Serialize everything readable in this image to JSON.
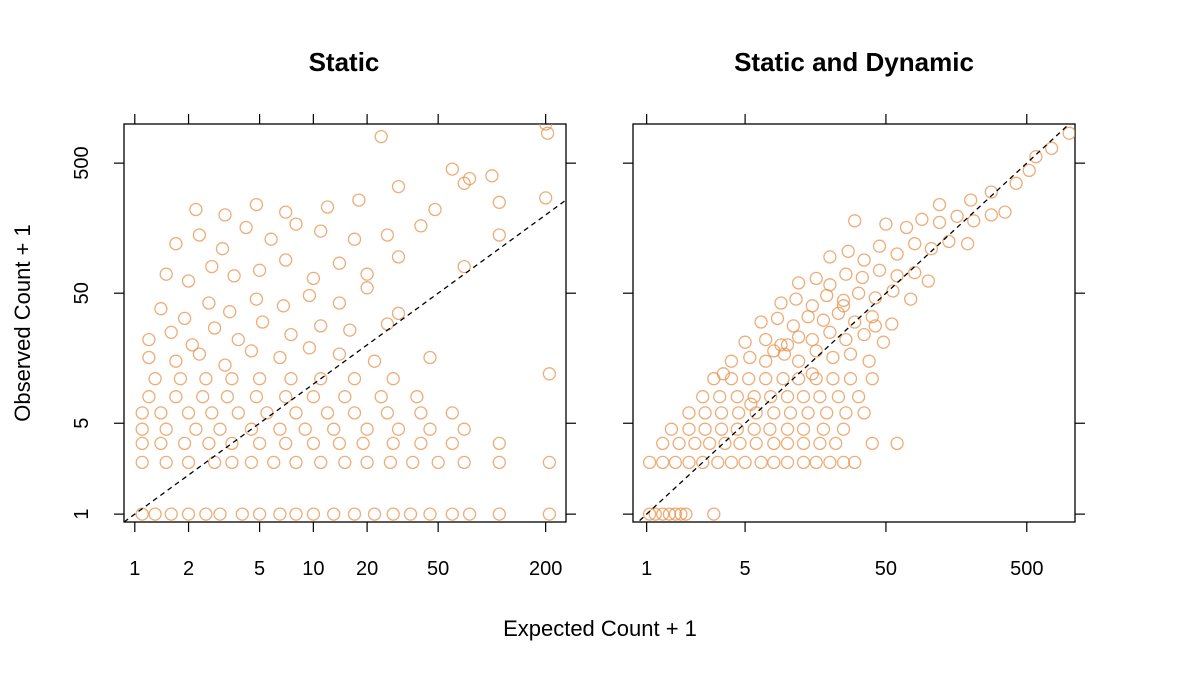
{
  "chart_data": {
    "type": "scatter",
    "xlabel": "Expected Count + 1",
    "ylabel": "Observed Count + 1",
    "x_scale": "log",
    "y_scale": "log",
    "point_color": "#E8904A",
    "reference_line": "y = x (dashed)",
    "grid": false,
    "panels": [
      {
        "title": "Static",
        "xlim": [
          0.87,
          260
        ],
        "ylim": [
          0.87,
          1000
        ],
        "x_ticks": [
          1,
          2,
          5,
          10,
          20,
          50,
          200
        ],
        "x_tick_labels": [
          "1",
          "2",
          "5",
          "10",
          "20",
          "50",
          "200"
        ],
        "y_ticks": [
          1,
          5,
          50,
          500
        ],
        "y_tick_labels": [
          "1",
          "5",
          "50",
          "500"
        ],
        "points": [
          [
            1.1,
            1
          ],
          [
            1.3,
            1
          ],
          [
            1.6,
            1
          ],
          [
            2,
            1
          ],
          [
            2.5,
            1
          ],
          [
            3,
            1
          ],
          [
            4,
            1
          ],
          [
            5,
            1
          ],
          [
            6.5,
            1
          ],
          [
            8,
            1
          ],
          [
            10,
            1
          ],
          [
            13,
            1
          ],
          [
            17,
            1
          ],
          [
            22,
            1
          ],
          [
            28,
            1
          ],
          [
            35,
            1
          ],
          [
            45,
            1
          ],
          [
            60,
            1
          ],
          [
            75,
            1
          ],
          [
            110,
            1
          ],
          [
            210,
            1
          ],
          [
            1.1,
            2.5
          ],
          [
            1.5,
            2.5
          ],
          [
            2,
            2.5
          ],
          [
            2.8,
            2.5
          ],
          [
            3.5,
            2.5
          ],
          [
            4.5,
            2.5
          ],
          [
            6,
            2.5
          ],
          [
            8,
            2.5
          ],
          [
            11,
            2.5
          ],
          [
            15,
            2.5
          ],
          [
            20,
            2.5
          ],
          [
            27,
            2.5
          ],
          [
            36,
            2.5
          ],
          [
            50,
            2.5
          ],
          [
            70,
            2.5
          ],
          [
            110,
            2.5
          ],
          [
            210,
            2.5
          ],
          [
            1.1,
            3.5
          ],
          [
            1.4,
            3.5
          ],
          [
            1.9,
            3.5
          ],
          [
            2.6,
            3.5
          ],
          [
            3.5,
            3.5
          ],
          [
            5,
            3.5
          ],
          [
            7,
            3.5
          ],
          [
            10,
            3.5
          ],
          [
            14,
            3.5
          ],
          [
            19,
            3.5
          ],
          [
            28,
            3.5
          ],
          [
            40,
            3.5
          ],
          [
            60,
            3.5
          ],
          [
            110,
            3.5
          ],
          [
            1.1,
            4.5
          ],
          [
            1.5,
            4.5
          ],
          [
            2.2,
            4.5
          ],
          [
            3,
            4.5
          ],
          [
            4.5,
            4.5
          ],
          [
            6.5,
            4.5
          ],
          [
            9,
            4.5
          ],
          [
            13,
            4.5
          ],
          [
            20,
            4.5
          ],
          [
            30,
            4.5
          ],
          [
            45,
            4.5
          ],
          [
            70,
            4.5
          ],
          [
            1.1,
            6
          ],
          [
            1.4,
            6
          ],
          [
            2,
            6
          ],
          [
            2.7,
            6
          ],
          [
            3.8,
            6
          ],
          [
            5.5,
            6
          ],
          [
            8,
            6
          ],
          [
            12,
            6
          ],
          [
            17,
            6
          ],
          [
            26,
            6
          ],
          [
            40,
            6
          ],
          [
            60,
            6
          ],
          [
            1.2,
            8
          ],
          [
            1.7,
            8
          ],
          [
            2.4,
            8
          ],
          [
            3.3,
            8
          ],
          [
            4.8,
            8
          ],
          [
            7,
            8
          ],
          [
            10,
            8
          ],
          [
            15,
            8
          ],
          [
            24,
            8
          ],
          [
            38,
            8
          ],
          [
            1.3,
            11
          ],
          [
            1.8,
            11
          ],
          [
            2.5,
            11
          ],
          [
            3.5,
            11
          ],
          [
            5,
            11
          ],
          [
            7.5,
            11
          ],
          [
            11,
            11
          ],
          [
            17,
            11
          ],
          [
            28,
            11
          ],
          [
            1.2,
            16
          ],
          [
            1.7,
            15
          ],
          [
            2.3,
            17
          ],
          [
            3.2,
            14
          ],
          [
            4.5,
            18
          ],
          [
            6.5,
            16
          ],
          [
            9.5,
            19
          ],
          [
            14,
            17
          ],
          [
            22,
            15
          ],
          [
            45,
            16
          ],
          [
            210,
            12
          ],
          [
            1.2,
            22
          ],
          [
            1.6,
            25
          ],
          [
            2.1,
            20
          ],
          [
            2.8,
            27
          ],
          [
            3.8,
            22
          ],
          [
            5.2,
            30
          ],
          [
            7.5,
            24
          ],
          [
            11,
            28
          ],
          [
            16,
            26
          ],
          [
            26,
            29
          ],
          [
            1.4,
            38
          ],
          [
            1.9,
            32
          ],
          [
            2.6,
            42
          ],
          [
            3.4,
            36
          ],
          [
            4.8,
            45
          ],
          [
            6.8,
            40
          ],
          [
            9.5,
            48
          ],
          [
            14,
            42
          ],
          [
            20,
            55
          ],
          [
            30,
            35
          ],
          [
            1.5,
            70
          ],
          [
            2,
            62
          ],
          [
            2.7,
            80
          ],
          [
            3.6,
            68
          ],
          [
            5,
            75
          ],
          [
            7,
            90
          ],
          [
            10,
            65
          ],
          [
            14,
            85
          ],
          [
            20,
            70
          ],
          [
            30,
            95
          ],
          [
            70,
            80
          ],
          [
            1.7,
            120
          ],
          [
            2.3,
            140
          ],
          [
            3.1,
            110
          ],
          [
            4.2,
            160
          ],
          [
            5.8,
            130
          ],
          [
            8,
            170
          ],
          [
            11,
            150
          ],
          [
            17,
            130
          ],
          [
            26,
            140
          ],
          [
            40,
            165
          ],
          [
            110,
            140
          ],
          [
            2.2,
            220
          ],
          [
            3.2,
            200
          ],
          [
            4.8,
            240
          ],
          [
            7,
            210
          ],
          [
            12,
            230
          ],
          [
            18,
            260
          ],
          [
            30,
            330
          ],
          [
            48,
            220
          ],
          [
            70,
            350
          ],
          [
            100,
            400
          ],
          [
            60,
            450
          ],
          [
            75,
            380
          ],
          [
            110,
            250
          ],
          [
            200,
            270
          ],
          [
            24,
            800
          ],
          [
            200,
            1000
          ],
          [
            205,
            850
          ]
        ]
      },
      {
        "title": "Static and Dynamic",
        "xlim": [
          0.8,
          1100
        ],
        "ylim": [
          0.87,
          1000
        ],
        "x_ticks": [
          1,
          5,
          50,
          500
        ],
        "x_tick_labels": [
          "1",
          "5",
          "50",
          "500"
        ],
        "y_ticks": [
          1,
          5,
          50,
          500
        ],
        "y_tick_labels": [
          "1",
          "5",
          "50",
          "500"
        ],
        "points": [
          [
            1.05,
            1
          ],
          [
            1.15,
            1
          ],
          [
            1.3,
            1
          ],
          [
            1.45,
            1
          ],
          [
            1.6,
            1
          ],
          [
            1.75,
            1
          ],
          [
            1.9,
            1
          ],
          [
            3,
            1
          ],
          [
            1.05,
            2.5
          ],
          [
            1.3,
            2.5
          ],
          [
            1.6,
            2.5
          ],
          [
            2,
            2.5
          ],
          [
            2.5,
            2.5
          ],
          [
            3.2,
            2.5
          ],
          [
            4,
            2.5
          ],
          [
            5,
            2.5
          ],
          [
            6.5,
            2.5
          ],
          [
            8,
            2.5
          ],
          [
            10,
            2.5
          ],
          [
            13,
            2.5
          ],
          [
            16,
            2.5
          ],
          [
            20,
            2.5
          ],
          [
            25,
            2.5
          ],
          [
            30,
            2.5
          ],
          [
            1.3,
            3.5
          ],
          [
            1.7,
            3.5
          ],
          [
            2.2,
            3.5
          ],
          [
            2.8,
            3.5
          ],
          [
            3.6,
            3.5
          ],
          [
            4.6,
            3.5
          ],
          [
            6,
            3.5
          ],
          [
            8,
            3.5
          ],
          [
            10,
            3.5
          ],
          [
            13,
            3.5
          ],
          [
            17,
            3.5
          ],
          [
            22,
            3.5
          ],
          [
            40,
            3.5
          ],
          [
            1.5,
            4.5
          ],
          [
            2,
            4.5
          ],
          [
            2.6,
            4.5
          ],
          [
            3.4,
            4.5
          ],
          [
            4.4,
            4.5
          ],
          [
            5.8,
            4.5
          ],
          [
            7.5,
            4.5
          ],
          [
            10,
            4.5
          ],
          [
            13,
            4.5
          ],
          [
            18,
            4.5
          ],
          [
            25,
            4.5
          ],
          [
            2,
            6
          ],
          [
            2.6,
            6
          ],
          [
            3.4,
            6
          ],
          [
            4.5,
            6
          ],
          [
            6,
            6
          ],
          [
            8,
            6
          ],
          [
            10.5,
            6
          ],
          [
            14,
            6
          ],
          [
            19,
            6
          ],
          [
            26,
            6
          ],
          [
            35,
            6
          ],
          [
            2.5,
            8
          ],
          [
            3.3,
            8
          ],
          [
            4.4,
            8
          ],
          [
            5.8,
            8
          ],
          [
            7.6,
            8
          ],
          [
            10,
            8
          ],
          [
            13,
            8
          ],
          [
            17,
            8
          ],
          [
            23,
            8
          ],
          [
            32,
            8
          ],
          [
            3,
            11
          ],
          [
            4,
            11
          ],
          [
            5.3,
            11
          ],
          [
            7,
            11
          ],
          [
            9.3,
            11
          ],
          [
            12,
            11
          ],
          [
            16,
            11
          ],
          [
            21,
            11
          ],
          [
            28,
            11
          ],
          [
            40,
            11
          ],
          [
            4,
            15
          ],
          [
            5.4,
            16
          ],
          [
            7,
            15
          ],
          [
            9.5,
            17
          ],
          [
            12,
            15
          ],
          [
            16,
            18
          ],
          [
            21,
            16
          ],
          [
            28,
            17
          ],
          [
            38,
            15
          ],
          [
            5,
            21
          ],
          [
            7,
            22
          ],
          [
            9,
            20
          ],
          [
            12,
            23
          ],
          [
            15,
            22
          ],
          [
            20,
            25
          ],
          [
            26,
            22
          ],
          [
            35,
            24
          ],
          [
            48,
            21
          ],
          [
            6.5,
            30
          ],
          [
            8.5,
            32
          ],
          [
            11,
            28
          ],
          [
            14,
            33
          ],
          [
            18,
            31
          ],
          [
            23,
            35
          ],
          [
            30,
            30
          ],
          [
            40,
            33
          ],
          [
            55,
            29
          ],
          [
            9,
            42
          ],
          [
            11.5,
            45
          ],
          [
            15,
            40
          ],
          [
            19,
            48
          ],
          [
            25,
            44
          ],
          [
            32,
            50
          ],
          [
            42,
            46
          ],
          [
            56,
            52
          ],
          [
            75,
            45
          ],
          [
            12,
            60
          ],
          [
            16,
            65
          ],
          [
            20,
            58
          ],
          [
            26,
            70
          ],
          [
            34,
            66
          ],
          [
            45,
            75
          ],
          [
            60,
            68
          ],
          [
            80,
            72
          ],
          [
            100,
            62
          ],
          [
            20,
            95
          ],
          [
            27,
            105
          ],
          [
            35,
            90
          ],
          [
            45,
            115
          ],
          [
            60,
            100
          ],
          [
            80,
            120
          ],
          [
            105,
            110
          ],
          [
            140,
            125
          ],
          [
            190,
            120
          ],
          [
            50,
            170
          ],
          [
            70,
            160
          ],
          [
            90,
            185
          ],
          [
            120,
            175
          ],
          [
            160,
            195
          ],
          [
            210,
            180
          ],
          [
            280,
            200
          ],
          [
            350,
            210
          ],
          [
            120,
            240
          ],
          [
            200,
            260
          ],
          [
            280,
            300
          ],
          [
            420,
            350
          ],
          [
            520,
            440
          ],
          [
            580,
            560
          ],
          [
            750,
            650
          ],
          [
            1000,
            850
          ],
          [
            30,
            180
          ],
          [
            8,
            18
          ],
          [
            60,
            3.5
          ],
          [
            15,
            12
          ],
          [
            5.5,
            7
          ],
          [
            3.5,
            12
          ],
          [
            10,
            20
          ],
          [
            25,
            40
          ],
          [
            42,
            28
          ]
        ]
      }
    ]
  }
}
